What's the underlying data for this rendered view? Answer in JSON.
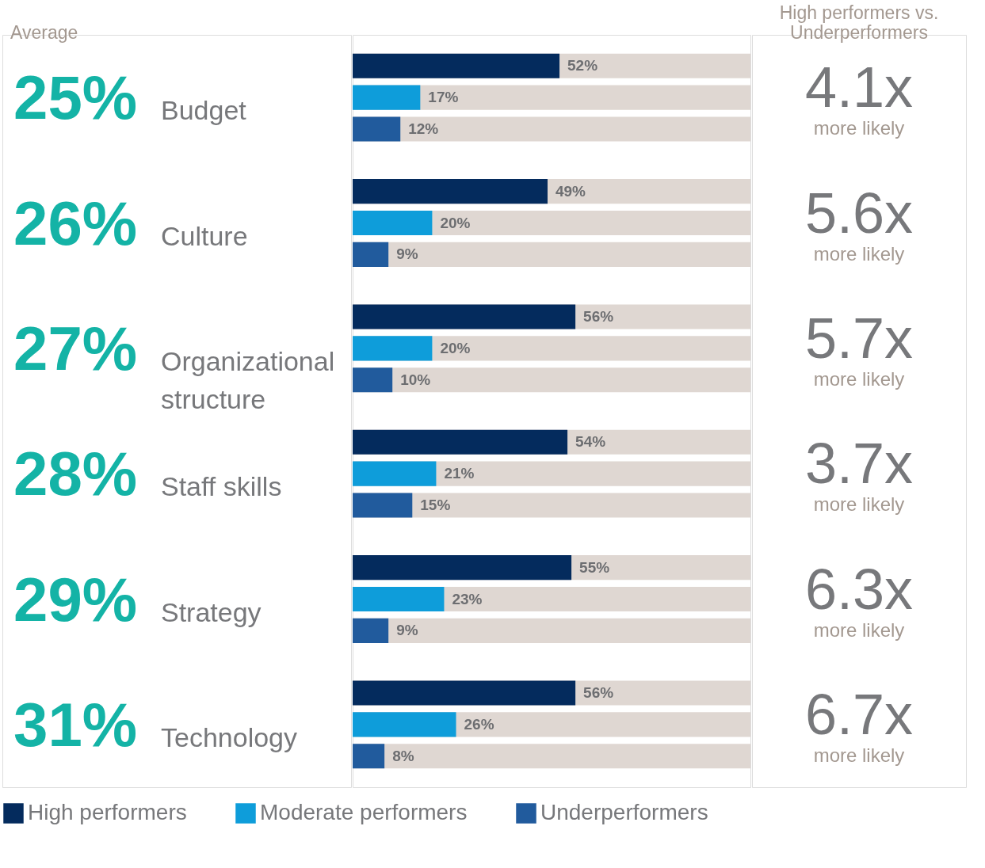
{
  "chart_data": {
    "type": "bar",
    "orientation": "horizontal",
    "categories": [
      "Budget",
      "Culture",
      "Organizational structure",
      "Staff skills",
      "Strategy",
      "Technology"
    ],
    "series": [
      {
        "name": "High performers",
        "color": "#042b5d",
        "values": [
          52,
          49,
          56,
          54,
          55,
          56
        ],
        "value_labels": [
          "52%",
          "49%",
          "56%",
          "54%",
          "55%",
          "56%"
        ]
      },
      {
        "name": "Moderate performers",
        "color": "#0e9dda",
        "values": [
          17,
          20,
          20,
          21,
          23,
          26
        ],
        "value_labels": [
          "17%",
          "20%",
          "20%",
          "21%",
          "23%",
          "26%"
        ]
      },
      {
        "name": "Underperformers",
        "color": "#215b9d",
        "values": [
          12,
          9,
          10,
          15,
          9,
          8
        ],
        "value_labels": [
          "12%",
          "9%",
          "10%",
          "15%",
          "9%",
          "8%"
        ]
      }
    ],
    "xlim": [
      0,
      100
    ],
    "tick_labels": "y",
    "legend": "bottom",
    "annotations": [
      "Average",
      "High performers vs. Underperformers",
      "25%",
      "4.1x",
      "more likely",
      "26%",
      "5.6x",
      "more likely",
      "27%",
      "5.7x",
      "more likely",
      "28%",
      "3.7x",
      "more likely",
      "29%",
      "6.3x",
      "more likely",
      "31%",
      "6.7x",
      "more likely"
    ]
  }
}
